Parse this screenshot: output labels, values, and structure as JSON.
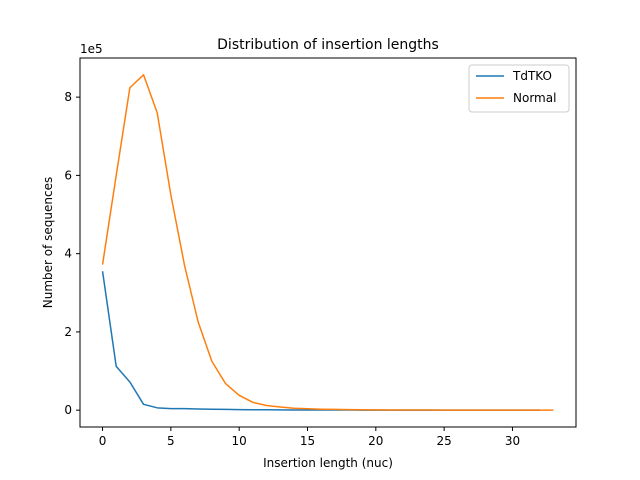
{
  "chart_data": {
    "type": "line",
    "title": "Distribution of insertion lengths",
    "xlabel": "Insertion length (nuc)",
    "ylabel": "Number of sequences",
    "y_offset_label": "1e5",
    "xlim": [
      -1.65,
      34.65
    ],
    "ylim": [
      -0.43,
      9.0
    ],
    "y_scale_factor": 100000,
    "xticks": [
      0,
      5,
      10,
      15,
      20,
      25,
      30
    ],
    "yticks": [
      0,
      2,
      4,
      6,
      8
    ],
    "grid": false,
    "legend_position": "top-right",
    "series": [
      {
        "name": "TdTKO",
        "color": "#1f77b4",
        "x": [
          0,
          1,
          2,
          3,
          4,
          5,
          6,
          7,
          8,
          9,
          10,
          11,
          12,
          13,
          14,
          15,
          16,
          17,
          18,
          19,
          20,
          21,
          22,
          23,
          24,
          25,
          26,
          27,
          28,
          29,
          30,
          31,
          32
        ],
        "y": [
          3.55,
          1.12,
          0.72,
          0.15,
          0.06,
          0.04,
          0.04,
          0.03,
          0.025,
          0.02,
          0.015,
          0.01,
          0.01,
          0.008,
          0.006,
          0.005,
          0.004,
          0.003,
          0.003,
          0.002,
          0.002,
          0.002,
          0.001,
          0.001,
          0.001,
          0.001,
          0.001,
          0.001,
          0.0,
          0.0,
          0.0,
          0.0,
          0.0
        ]
      },
      {
        "name": "Normal",
        "color": "#ff7f0e",
        "x": [
          0,
          1,
          2,
          3,
          4,
          5,
          6,
          7,
          8,
          9,
          10,
          11,
          12,
          13,
          14,
          15,
          16,
          17,
          18,
          19,
          20,
          21,
          22,
          23,
          24,
          25,
          26,
          27,
          28,
          29,
          30,
          31,
          32,
          33
        ],
        "y": [
          3.72,
          6.0,
          8.24,
          8.57,
          7.6,
          5.5,
          3.7,
          2.25,
          1.25,
          0.68,
          0.38,
          0.2,
          0.12,
          0.08,
          0.05,
          0.035,
          0.025,
          0.02,
          0.015,
          0.01,
          0.008,
          0.006,
          0.005,
          0.004,
          0.003,
          0.002,
          0.002,
          0.002,
          0.001,
          0.001,
          0.001,
          0.001,
          0.0,
          0.0
        ]
      }
    ]
  }
}
